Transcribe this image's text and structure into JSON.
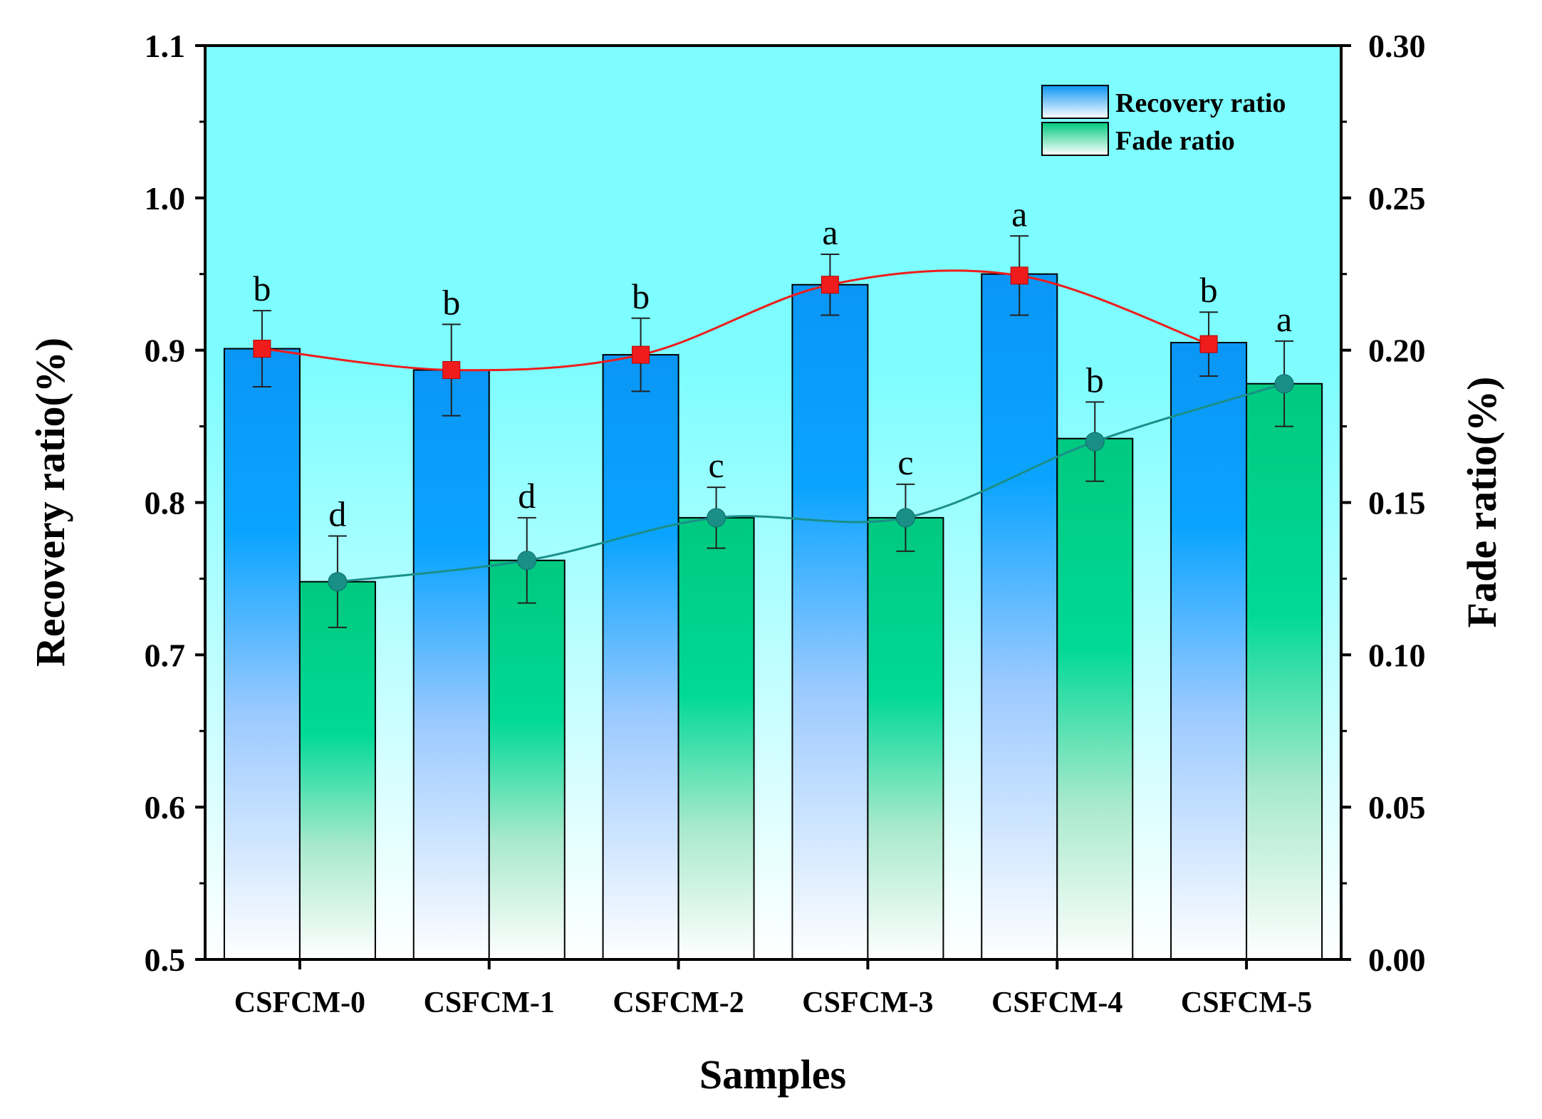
{
  "chart_data": {
    "type": "bar",
    "categories": [
      "CSFCM-0",
      "CSFCM-1",
      "CSFCM-2",
      "CSFCM-3",
      "CSFCM-4",
      "CSFCM-5"
    ],
    "xlabel": "Samples",
    "ylabel": "Recovery ratio(%)",
    "y2label": "Fade ratio(%)",
    "ylim": [
      0.5,
      1.1
    ],
    "y2lim": [
      0.0,
      0.3
    ],
    "yticks": [
      "0.5",
      "0.6",
      "0.7",
      "0.8",
      "0.9",
      "1.0",
      "1.1"
    ],
    "y2ticks": [
      "0.00",
      "0.05",
      "0.10",
      "0.15",
      "0.20",
      "0.25",
      "0.30"
    ],
    "legend_position": "top-right",
    "series": [
      {
        "name": "Recovery ratio",
        "axis": "left",
        "values": [
          0.901,
          0.887,
          0.897,
          0.943,
          0.95,
          0.905
        ],
        "points": [
          0.901,
          0.887,
          0.897,
          0.943,
          0.949,
          0.904
        ],
        "errors": [
          0.025,
          0.03,
          0.024,
          0.02,
          0.026,
          0.021
        ],
        "labels": [
          "b",
          "b",
          "b",
          "a",
          "a",
          "b"
        ],
        "color": "#0a96f5",
        "line_color": "#ee1c1c",
        "marker": "square"
      },
      {
        "name": "Fade ratio",
        "axis": "right",
        "values": [
          0.124,
          0.131,
          0.145,
          0.145,
          0.171,
          0.189
        ],
        "points": [
          0.124,
          0.131,
          0.145,
          0.145,
          0.17,
          0.189
        ],
        "errors": [
          0.015,
          0.014,
          0.01,
          0.011,
          0.013,
          0.014
        ],
        "labels": [
          "d",
          "d",
          "c",
          "c",
          "b",
          "a"
        ],
        "color": "#00cc8a",
        "line_color": "#1a8f88",
        "marker": "circle"
      }
    ]
  },
  "colors": {
    "plot_bg": "#80ffff"
  }
}
